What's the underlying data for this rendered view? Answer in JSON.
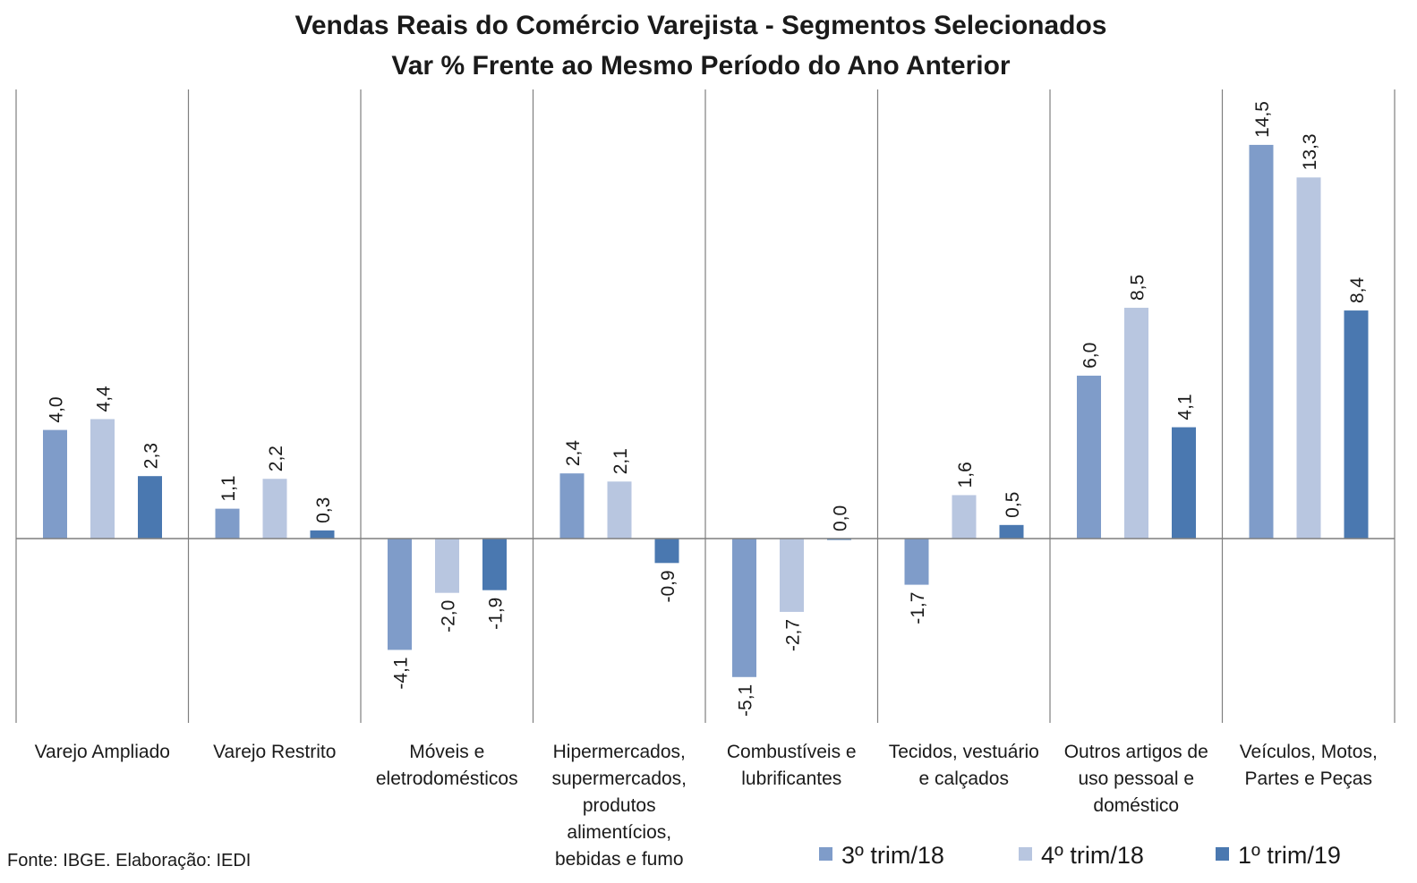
{
  "chart_data": {
    "type": "bar",
    "title": "Vendas Reais do Comércio Varejista - Segmentos Selecionados",
    "subtitle": "Var % Frente ao Mesmo Período do Ano Anterior",
    "source": "Fonte: IBGE. Elaboração: IEDI",
    "categories": [
      [
        "Varejo Ampliado"
      ],
      [
        "Varejo Restrito"
      ],
      [
        "Móveis e",
        "eletrodomésticos"
      ],
      [
        "Hipermercados,",
        "supermercados,",
        "produtos",
        "alimentícios,",
        "bebidas e fumo"
      ],
      [
        "Combustíveis e",
        "lubrificantes"
      ],
      [
        "Tecidos, vestuário",
        "e calçados"
      ],
      [
        "Outros artigos de",
        "uso pessoal e",
        "doméstico"
      ],
      [
        "Veículos, Motos,",
        "Partes e Peças"
      ]
    ],
    "series": [
      {
        "name": "3º trim/18",
        "color": "#7f9cc9",
        "values": [
          4.0,
          1.1,
          -4.1,
          2.4,
          -5.1,
          -1.7,
          6.0,
          14.5
        ],
        "labels": [
          "4,0",
          "1,1",
          "-4,1",
          "2,4",
          "-5,1",
          "-1,7",
          "6,0",
          "14,5"
        ]
      },
      {
        "name": "4º trim/18",
        "color": "#b8c6e0",
        "values": [
          4.4,
          2.2,
          -2.0,
          2.1,
          -2.7,
          1.6,
          8.5,
          13.3
        ],
        "labels": [
          "4,4",
          "2,2",
          "-2,0",
          "2,1",
          "-2,7",
          "1,6",
          "8,5",
          "13,3"
        ]
      },
      {
        "name": "1º trim/19",
        "color": "#4a78b0",
        "values": [
          2.3,
          0.3,
          -1.9,
          -0.9,
          0.0,
          0.5,
          4.1,
          8.4
        ],
        "labels": [
          "2,3",
          "0,3",
          "-1,9",
          "-0,9",
          "0,0",
          "0,5",
          "4,1",
          "8,4"
        ]
      }
    ],
    "ylim": [
      -6.7,
      16.7
    ],
    "grid": false,
    "legend": "bottom-right"
  }
}
